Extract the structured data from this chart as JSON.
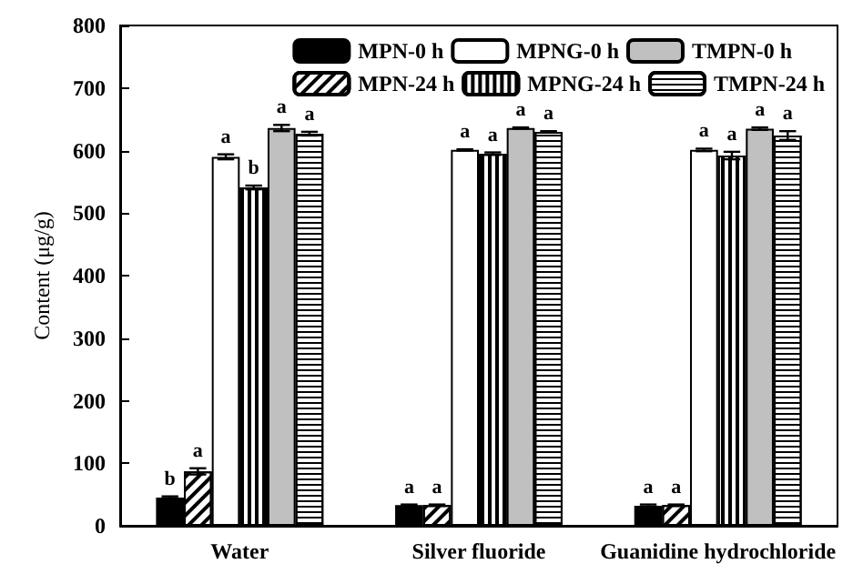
{
  "chart_data": {
    "type": "bar",
    "ylabel": "Content (μg/g)",
    "categories": [
      "Water",
      "Silver fluoride",
      "Guanidine hydrochloride"
    ],
    "series": [
      {
        "name": "MPN-0 h",
        "color": "#000000",
        "values": [
          45,
          33,
          32
        ],
        "errors": [
          2,
          1,
          2
        ],
        "value_labels": [
          "b",
          "a",
          "a"
        ]
      },
      {
        "name": "MPN-24 h",
        "color": "#ffffff",
        "values": [
          87,
          33,
          33
        ],
        "errors": [
          5,
          1,
          1
        ],
        "value_labels": [
          "a",
          "a",
          "a"
        ]
      },
      {
        "name": "MPNG-0 h",
        "color": "#ffffff",
        "values": [
          590,
          601,
          601
        ],
        "errors": [
          4,
          1,
          2
        ],
        "value_labels": [
          "a",
          "a",
          "a"
        ]
      },
      {
        "name": "MPNG-24 h",
        "color": "#ffffff",
        "values": [
          541,
          595,
          592
        ],
        "errors": [
          3,
          2,
          6
        ],
        "value_labels": [
          "b",
          "a",
          "a"
        ]
      },
      {
        "name": "TMPN-0 h",
        "color": "#c0c0c0",
        "values": [
          636,
          636,
          635
        ],
        "errors": [
          5,
          1,
          2
        ],
        "value_labels": [
          "a",
          "a",
          "a"
        ]
      },
      {
        "name": "TMPN-24 h",
        "color": "#ffffff",
        "values": [
          627,
          630,
          624
        ],
        "errors": [
          3,
          1,
          7
        ],
        "value_labels": [
          "a",
          "a",
          "a"
        ]
      }
    ],
    "ylim": [
      0,
      800
    ],
    "yticks": [
      0,
      100,
      200,
      300,
      400,
      500,
      600,
      700,
      800
    ],
    "grid": false,
    "legend": "top right"
  }
}
